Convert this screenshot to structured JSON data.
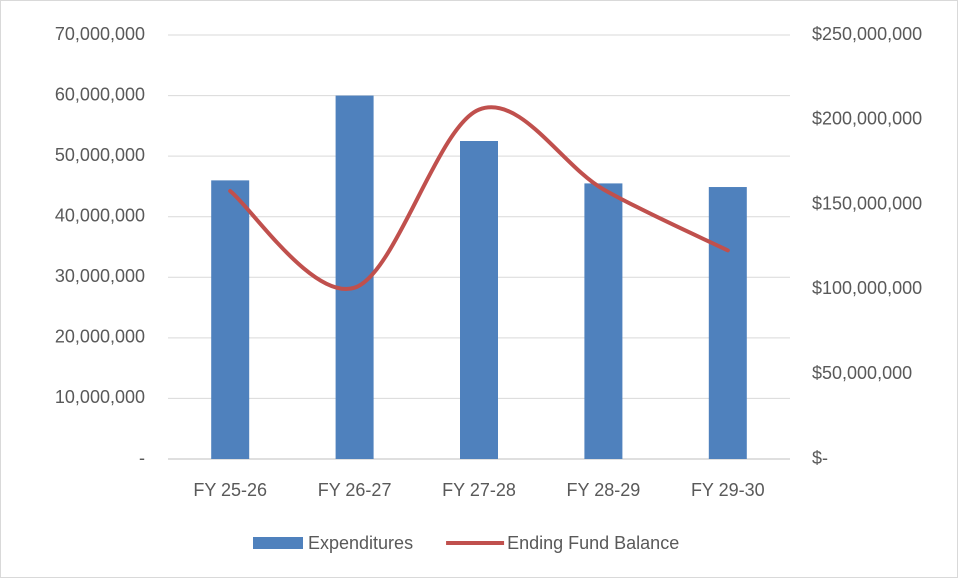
{
  "chart_data": {
    "type": "bar_line",
    "categories": [
      "FY 25-26",
      "FY 26-27",
      "FY 27-28",
      "FY 28-29",
      "FY 29-30"
    ],
    "series": [
      {
        "name": "Expenditures",
        "color": "#4f81bd",
        "values": [
          46000000,
          60000000,
          52500000,
          45500000,
          44900000
        ]
      },
      {
        "name": "Ending Fund Balance",
        "color": "#c0504d",
        "axis": "y2",
        "smooth": true,
        "values": [
          158000000,
          101000000,
          206000000,
          159000000,
          123000000
        ]
      }
    ],
    "ylim": [
      0,
      70000000
    ],
    "yticks": [
      {
        "value": 0,
        "label": "-"
      },
      {
        "value": 10000000,
        "label": "10,000,000"
      },
      {
        "value": 20000000,
        "label": "20,000,000"
      },
      {
        "value": 30000000,
        "label": "30,000,000"
      },
      {
        "value": 40000000,
        "label": "40,000,000"
      },
      {
        "value": 50000000,
        "label": "50,000,000"
      },
      {
        "value": 60000000,
        "label": "60,000,000"
      },
      {
        "value": 70000000,
        "label": "70,000,000"
      }
    ],
    "y2lim": [
      0,
      250000000
    ],
    "y2ticks": [
      {
        "value": 0,
        "label": "$-"
      },
      {
        "value": 50000000,
        "label": "$50,000,000"
      },
      {
        "value": 100000000,
        "label": "$100,000,000"
      },
      {
        "value": 150000000,
        "label": "$150,000,000"
      },
      {
        "value": 200000000,
        "label": "$200,000,000"
      },
      {
        "value": 250000000,
        "label": "$250,000,000"
      }
    ],
    "grid": true,
    "legend": "bottom"
  }
}
